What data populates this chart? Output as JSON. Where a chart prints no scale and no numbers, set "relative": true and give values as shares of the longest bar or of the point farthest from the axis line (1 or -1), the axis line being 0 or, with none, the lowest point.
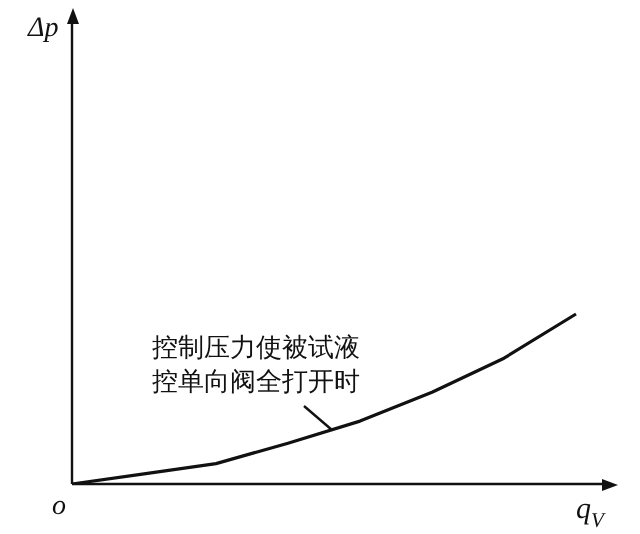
{
  "chart_data": {
    "type": "line",
    "relative": true,
    "xlabel": "q$_{V}$",
    "categories": [
      null,
      null,
      null,
      null,
      null,
      null,
      null,
      null
    ],
    "values": [
      0,
      0.06,
      0.12,
      0.24,
      0.37,
      0.54,
      0.74,
      1
    ],
    "color": "#111111",
    "marker": "none",
    "line_style": "solid",
    "legend": false,
    "annotations": [
      "控制压力使被试液控单向阀全打开时",
      "o",
      "Δp"
    ]
  }
}
